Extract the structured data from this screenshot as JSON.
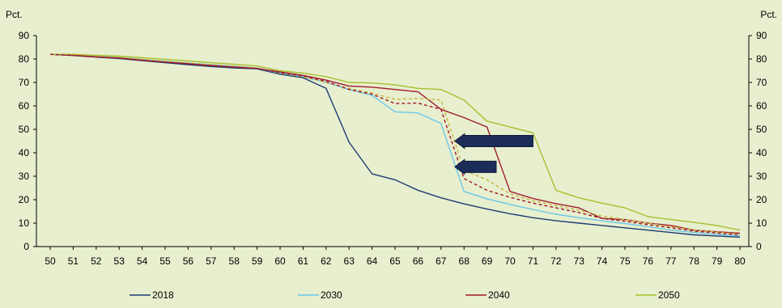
{
  "chart_data": {
    "type": "line",
    "y_unit_left": "Pct.",
    "y_unit_right": "Pct.",
    "ylim": [
      0,
      90
    ],
    "y_ticks": [
      0,
      10,
      20,
      30,
      40,
      50,
      60,
      70,
      80,
      90
    ],
    "x": [
      50,
      51,
      52,
      53,
      54,
      55,
      56,
      57,
      58,
      59,
      60,
      61,
      62,
      63,
      64,
      65,
      66,
      67,
      68,
      69,
      70,
      71,
      72,
      73,
      74,
      75,
      76,
      77,
      78,
      79,
      80
    ],
    "grid": false,
    "legend_position": "bottom",
    "series": [
      {
        "name": "2018",
        "color": "#1f3b73",
        "style": "solid",
        "values": [
          82,
          81.5,
          80.8,
          80.2,
          79.3,
          78.4,
          77.6,
          76.8,
          76.2,
          75.8,
          73.5,
          72.0,
          67.5,
          44.5,
          31.0,
          28.5,
          24.0,
          20.8,
          18.2,
          16.0,
          14.0,
          12.3,
          11.0,
          10.0,
          9.0,
          8.0,
          7.0,
          6.0,
          5.0,
          4.5,
          4.0
        ]
      },
      {
        "name": "2030",
        "color": "#6cc7e8",
        "style": "solid",
        "values": [
          82,
          81.8,
          81.2,
          80.6,
          79.9,
          79.1,
          78.3,
          77.6,
          76.9,
          76.1,
          74.0,
          72.5,
          70.0,
          67.0,
          64.5,
          57.5,
          57.0,
          52.5,
          23.5,
          20.3,
          18.0,
          15.8,
          13.8,
          12.3,
          11.0,
          9.8,
          8.5,
          7.0,
          6.0,
          5.2,
          4.5
        ]
      },
      {
        "name": "2040",
        "color": "#a01a2c",
        "style": "solid",
        "values": [
          82,
          81.6,
          80.9,
          80.4,
          79.5,
          78.7,
          78.0,
          77.2,
          76.6,
          76.0,
          74.5,
          73.0,
          71.0,
          68.5,
          68.0,
          67.0,
          66.0,
          58.5,
          55.0,
          51.0,
          23.5,
          20.5,
          18.3,
          16.5,
          12.0,
          11.5,
          10.0,
          9.0,
          7.0,
          6.3,
          5.7
        ]
      },
      {
        "name": "2050",
        "color": "#a6bf2a",
        "style": "solid",
        "values": [
          82,
          82.0,
          81.6,
          81.2,
          80.6,
          79.9,
          79.2,
          78.4,
          77.8,
          77.0,
          75.0,
          74.0,
          72.5,
          70.0,
          69.8,
          69.0,
          67.5,
          67.0,
          62.5,
          53.5,
          51.0,
          48.5,
          24.0,
          20.8,
          18.5,
          16.5,
          12.8,
          11.5,
          10.3,
          9.0,
          7.0
        ]
      },
      {
        "name": "",
        "color": "#c8b43a",
        "style": "dashed",
        "values": [
          82,
          81.8,
          81.2,
          80.6,
          79.9,
          79.1,
          78.3,
          77.6,
          76.9,
          76.1,
          74.0,
          72.5,
          70.0,
          67.5,
          65.5,
          62.8,
          63.2,
          62.5,
          32.5,
          28.5,
          22.5,
          19.5,
          17.5,
          15.5,
          13.0,
          11.5,
          10.0,
          8.5,
          7.0,
          6.2,
          5.3
        ]
      },
      {
        "name": "",
        "color": "#a01a2c",
        "style": "dashed",
        "values": [
          82,
          81.6,
          80.9,
          80.4,
          79.5,
          78.7,
          78.0,
          77.2,
          76.6,
          76.0,
          74.2,
          72.8,
          70.5,
          67.0,
          65.0,
          61.0,
          61.2,
          58.5,
          29.0,
          24.0,
          21.0,
          18.5,
          16.5,
          14.5,
          12.0,
          10.8,
          9.3,
          8.0,
          6.6,
          5.8,
          5.0
        ]
      }
    ],
    "annotations": [
      {
        "kind": "arrow",
        "direction": "left",
        "color": "#1c2d5a",
        "x_tip": 67.6,
        "x_tail": 71.0,
        "y": 45
      },
      {
        "kind": "arrow",
        "direction": "left",
        "color": "#1c2d5a",
        "x_tip": 67.6,
        "x_tail": 69.4,
        "y": 34
      }
    ]
  }
}
